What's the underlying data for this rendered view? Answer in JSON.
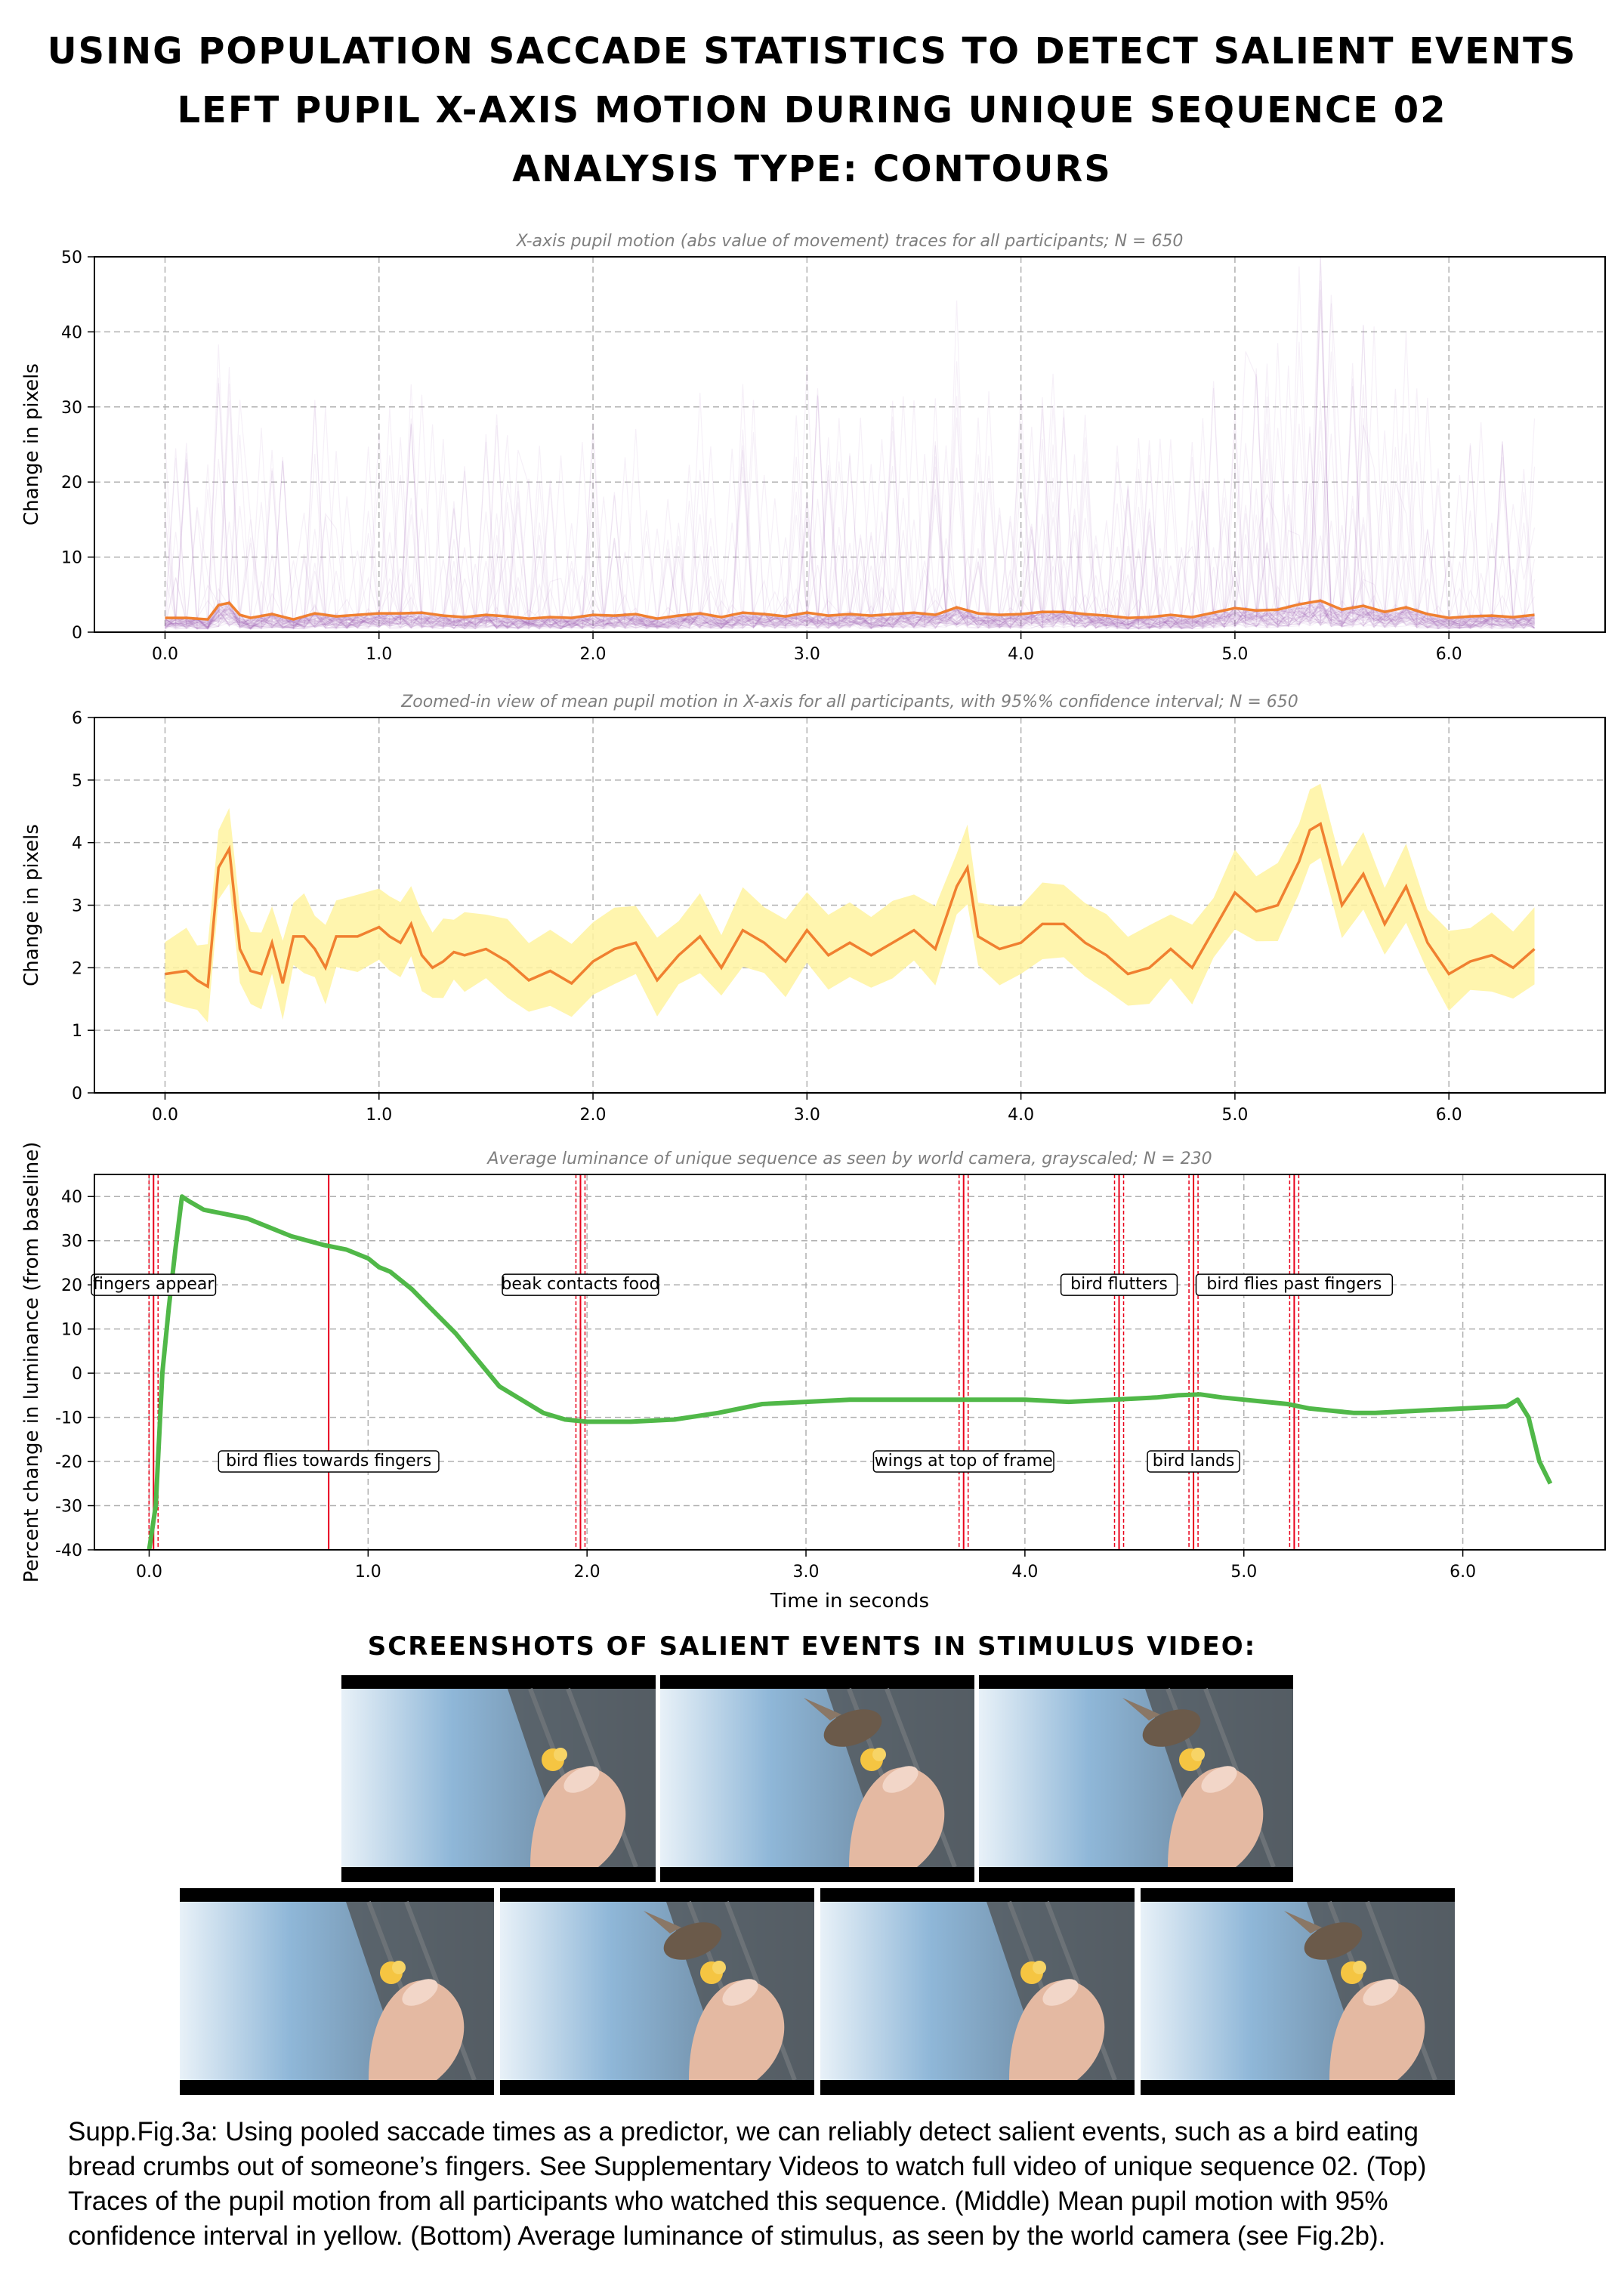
{
  "header": {
    "line1": "Using population saccade statistics to detect salient events",
    "line2": "Left pupil X-axis motion during unique sequence 02",
    "line3": "Analysis type: contours"
  },
  "chart_data": [
    {
      "type": "line",
      "title": "X-axis pupil motion (abs value of movement) traces for all participants; N = 650",
      "xlabel": "",
      "ylabel": "Change in pixels",
      "xlim": [
        -0.33,
        6.73
      ],
      "ylim": [
        0,
        50
      ],
      "xticks": [
        "0.0",
        "1.0",
        "2.0",
        "3.0",
        "4.0",
        "5.0",
        "6.0"
      ],
      "yticks": [
        "0",
        "10",
        "20",
        "30",
        "40",
        "50"
      ],
      "grid": true,
      "colors": {
        "traces": "#9b59b6",
        "mean": "#f08030"
      },
      "series": [
        {
          "name": "",
          "kind": "mean",
          "x": [
            0.0,
            0.1,
            0.2,
            0.25,
            0.3,
            0.35,
            0.4,
            0.5,
            0.6,
            0.7,
            0.8,
            0.9,
            1.0,
            1.1,
            1.2,
            1.3,
            1.4,
            1.5,
            1.6,
            1.7,
            1.8,
            1.9,
            2.0,
            2.1,
            2.2,
            2.3,
            2.4,
            2.5,
            2.6,
            2.7,
            2.8,
            2.9,
            3.0,
            3.1,
            3.2,
            3.3,
            3.4,
            3.5,
            3.6,
            3.7,
            3.8,
            3.9,
            4.0,
            4.1,
            4.2,
            4.3,
            4.4,
            4.5,
            4.6,
            4.7,
            4.8,
            4.9,
            5.0,
            5.1,
            5.2,
            5.3,
            5.4,
            5.5,
            5.6,
            5.7,
            5.8,
            5.9,
            6.0,
            6.1,
            6.2,
            6.3,
            6.4
          ],
          "y": [
            1.9,
            1.9,
            1.7,
            3.6,
            3.9,
            2.3,
            1.9,
            2.4,
            1.7,
            2.5,
            2.1,
            2.3,
            2.5,
            2.5,
            2.6,
            2.2,
            2.0,
            2.3,
            2.1,
            1.8,
            2.0,
            1.9,
            2.3,
            2.2,
            2.4,
            1.8,
            2.2,
            2.5,
            2.0,
            2.6,
            2.4,
            2.1,
            2.6,
            2.2,
            2.4,
            2.2,
            2.4,
            2.6,
            2.3,
            3.3,
            2.5,
            2.3,
            2.4,
            2.7,
            2.7,
            2.4,
            2.2,
            1.9,
            2.0,
            2.3,
            2.0,
            2.6,
            3.2,
            2.9,
            3.0,
            3.7,
            4.2,
            3.0,
            3.5,
            2.7,
            3.3,
            2.4,
            1.9,
            2.1,
            2.2,
            2.0,
            2.3
          ]
        }
      ]
    },
    {
      "type": "area",
      "title": "Zoomed-in view of mean pupil motion in X-axis for all participants, with 95%% confidence interval; N = 650",
      "xlabel": "",
      "ylabel": "Change in pixels",
      "xlim": [
        -0.33,
        6.73
      ],
      "ylim": [
        0,
        6
      ],
      "xticks": [
        "0.0",
        "1.0",
        "2.0",
        "3.0",
        "4.0",
        "5.0",
        "6.0"
      ],
      "yticks": [
        "0",
        "1",
        "2",
        "3",
        "4",
        "5",
        "6"
      ],
      "grid": true,
      "colors": {
        "band": "#fff3a0",
        "mean": "#f08030"
      },
      "series": [
        {
          "name": "",
          "kind": "mean",
          "x": [
            0.0,
            0.1,
            0.15,
            0.2,
            0.25,
            0.3,
            0.35,
            0.4,
            0.45,
            0.5,
            0.55,
            0.6,
            0.65,
            0.7,
            0.75,
            0.8,
            0.9,
            1.0,
            1.05,
            1.1,
            1.15,
            1.2,
            1.25,
            1.3,
            1.35,
            1.4,
            1.5,
            1.6,
            1.7,
            1.8,
            1.9,
            2.0,
            2.1,
            2.2,
            2.3,
            2.4,
            2.5,
            2.6,
            2.7,
            2.8,
            2.9,
            3.0,
            3.1,
            3.2,
            3.3,
            3.4,
            3.5,
            3.6,
            3.7,
            3.75,
            3.8,
            3.9,
            4.0,
            4.1,
            4.2,
            4.3,
            4.4,
            4.5,
            4.6,
            4.7,
            4.8,
            4.9,
            5.0,
            5.1,
            5.2,
            5.3,
            5.35,
            5.4,
            5.5,
            5.6,
            5.7,
            5.8,
            5.9,
            6.0,
            6.1,
            6.2,
            6.3,
            6.4
          ],
          "y": [
            1.9,
            1.95,
            1.8,
            1.7,
            3.6,
            3.9,
            2.3,
            1.95,
            1.9,
            2.4,
            1.75,
            2.5,
            2.5,
            2.3,
            2.0,
            2.5,
            2.5,
            2.65,
            2.5,
            2.4,
            2.7,
            2.2,
            2.0,
            2.1,
            2.25,
            2.2,
            2.3,
            2.1,
            1.8,
            1.95,
            1.75,
            2.1,
            2.3,
            2.4,
            1.8,
            2.2,
            2.5,
            2.0,
            2.6,
            2.4,
            2.1,
            2.6,
            2.2,
            2.4,
            2.2,
            2.4,
            2.6,
            2.3,
            3.3,
            3.6,
            2.5,
            2.3,
            2.4,
            2.7,
            2.7,
            2.4,
            2.2,
            1.9,
            2.0,
            2.3,
            2.0,
            2.6,
            3.2,
            2.9,
            3.0,
            3.7,
            4.2,
            4.3,
            3.0,
            3.5,
            2.7,
            3.3,
            2.4,
            1.9,
            2.1,
            2.2,
            2.0,
            2.3
          ]
        },
        {
          "name": "",
          "kind": "ci_halfwidth",
          "value": 0.6
        }
      ]
    },
    {
      "type": "line",
      "title": "Average luminance of unique sequence as seen by world camera, grayscaled; N = 230",
      "xlabel": "Time in seconds",
      "ylabel": "Percent change in luminance (from baseline)",
      "xlim": [
        -0.25,
        6.65
      ],
      "ylim": [
        -40,
        45
      ],
      "xticks": [
        "0.0",
        "1.0",
        "2.0",
        "3.0",
        "4.0",
        "5.0",
        "6.0"
      ],
      "yticks": [
        "-40",
        "-30",
        "-20",
        "-10",
        "0",
        "10",
        "20",
        "30",
        "40"
      ],
      "grid": true,
      "colors": {
        "line": "#50b848",
        "events": "#e8001a"
      },
      "series": [
        {
          "name": "",
          "x": [
            0.0,
            0.03,
            0.06,
            0.09,
            0.12,
            0.15,
            0.18,
            0.25,
            0.35,
            0.45,
            0.55,
            0.65,
            0.8,
            0.9,
            1.0,
            1.05,
            1.1,
            1.2,
            1.3,
            1.4,
            1.5,
            1.6,
            1.7,
            1.8,
            1.9,
            2.0,
            2.2,
            2.4,
            2.6,
            2.8,
            3.0,
            3.2,
            3.4,
            3.6,
            3.8,
            4.0,
            4.2,
            4.4,
            4.6,
            4.7,
            4.8,
            4.9,
            5.0,
            5.1,
            5.2,
            5.3,
            5.4,
            5.5,
            5.6,
            5.8,
            6.0,
            6.2,
            6.25,
            6.3,
            6.35,
            6.4
          ],
          "y": [
            -40,
            -30,
            0,
            15,
            28,
            40,
            39,
            37,
            36,
            35,
            33,
            31,
            29,
            28,
            26,
            24,
            23,
            19,
            14,
            9,
            3,
            -3,
            -6,
            -9,
            -10.5,
            -11,
            -11,
            -10.5,
            -9,
            -7,
            -6.5,
            -6,
            -6,
            -6,
            -6,
            -6,
            -6.5,
            -6,
            -5.5,
            -5,
            -4.8,
            -5.5,
            -6,
            -6.5,
            -7,
            -8,
            -8.5,
            -9,
            -9,
            -8.5,
            -8,
            -7.5,
            -6,
            -10,
            -20,
            -25
          ]
        }
      ],
      "events": [
        {
          "t": 0.02,
          "label": "fingers appear",
          "row": "upper"
        },
        {
          "t": 0.82,
          "label": "bird flies towards fingers",
          "row": "lower"
        },
        {
          "t": 1.97,
          "label": "beak contacts food",
          "row": "upper"
        },
        {
          "t": 3.72,
          "label": "wings at top of frame",
          "row": "lower"
        },
        {
          "t": 4.43,
          "label": "bird flutters",
          "row": "upper"
        },
        {
          "t": 4.77,
          "label": "bird lands",
          "row": "lower"
        },
        {
          "t": 5.23,
          "label": "bird flies past fingers",
          "row": "upper"
        }
      ]
    }
  ],
  "screenshots": {
    "heading": "Screenshots of salient events in stimulus video:",
    "frames": [
      {
        "scene": "fingers with bread crumb"
      },
      {
        "scene": "fingers with bread crumb, bird approaching"
      },
      {
        "scene": "bird at fingers"
      },
      {
        "scene": "fingers with bread crumb"
      },
      {
        "scene": "bird above fingers"
      },
      {
        "scene": "fingers with bread crumb"
      },
      {
        "scene": "bird flying past fingers"
      }
    ]
  },
  "caption": {
    "line1": "Supp.Fig.3a: Using pooled saccade times as a predictor, we can reliably detect salient events, such as a bird eating",
    "line2": "bread crumbs out of someone’s fingers. See Supplementary Videos to watch full video of unique sequence 02. (Top)",
    "line3": "Traces of the pupil motion from all participants who watched this sequence. (Middle) Mean pupil motion with 95%",
    "line4": "confidence interval in yellow.  (Bottom) Average luminance of stimulus, as seen by the world camera (see Fig.2b)."
  }
}
